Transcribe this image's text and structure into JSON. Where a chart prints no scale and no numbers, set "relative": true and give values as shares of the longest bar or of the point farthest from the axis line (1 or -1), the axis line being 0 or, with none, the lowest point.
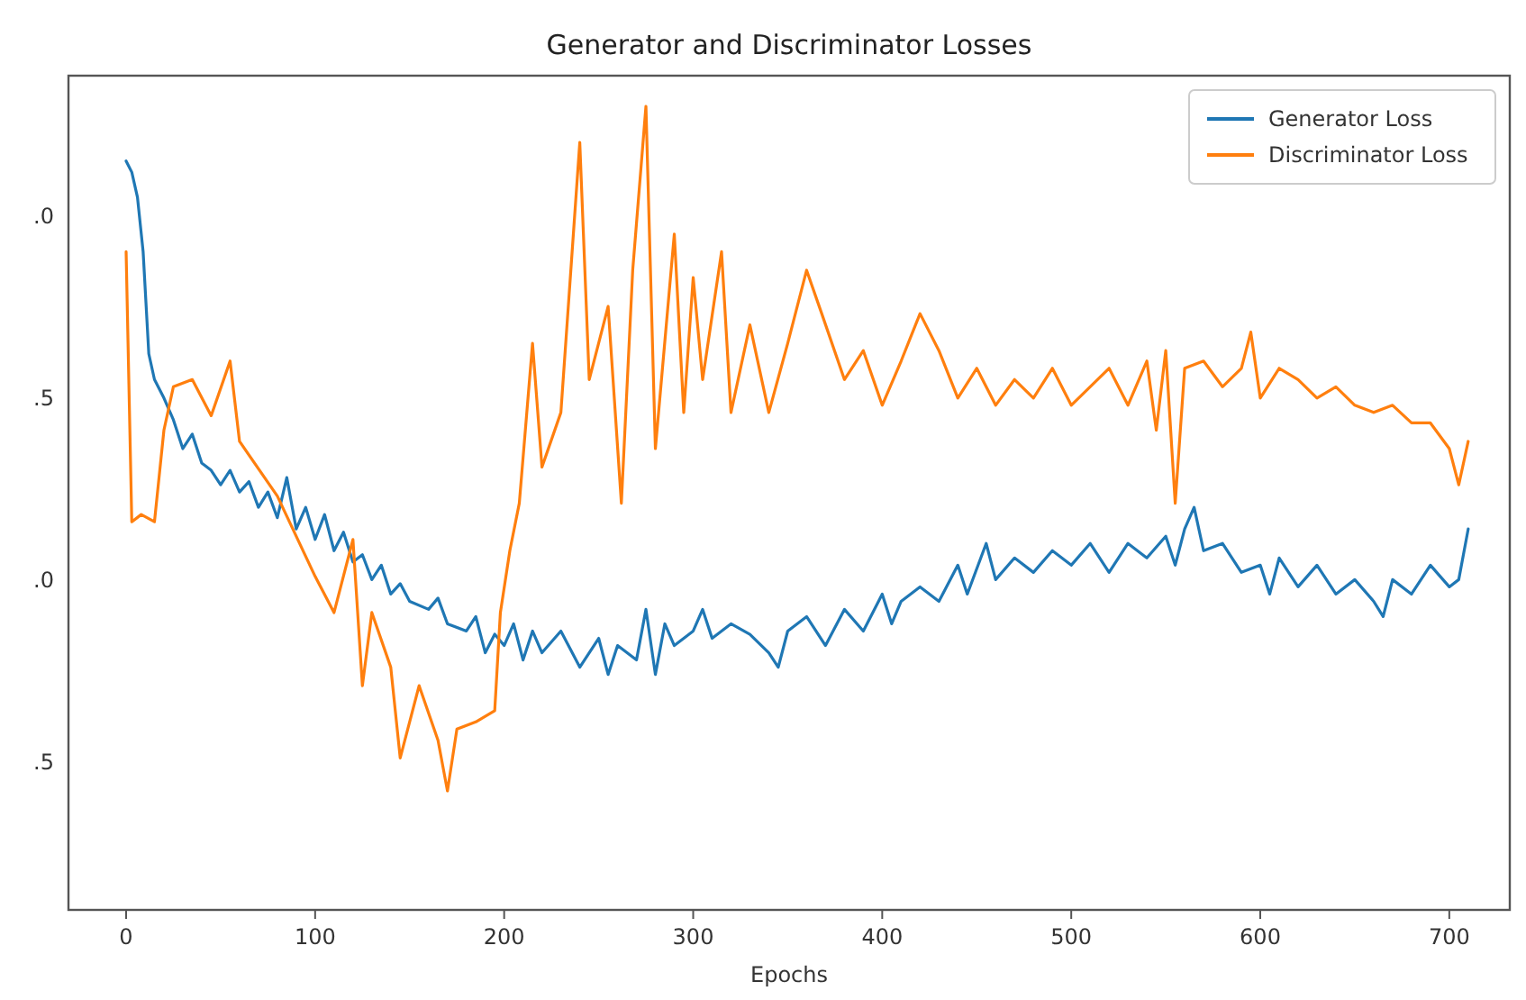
{
  "chart_data": {
    "type": "line",
    "title": "Generator and Discriminator Losses",
    "xlabel": "Epochs",
    "xlim": [
      -30.5,
      732
    ],
    "xticks": [
      0,
      100,
      200,
      300,
      400,
      500,
      600,
      700
    ],
    "relative": true,
    "annotations": [
      ".5",
      ".0",
      ".5",
      ".0"
    ],
    "grid": false,
    "legend": "top right",
    "line_style": "solid",
    "marker": "none",
    "series": [
      {
        "name": "Generator Loss",
        "color": "#1f77b4",
        "x": [
          0,
          3,
          6,
          9,
          12,
          15,
          20,
          25,
          30,
          35,
          40,
          45,
          50,
          55,
          60,
          65,
          70,
          75,
          80,
          85,
          90,
          95,
          100,
          105,
          110,
          115,
          120,
          125,
          130,
          135,
          140,
          145,
          150,
          160,
          165,
          170,
          180,
          185,
          190,
          195,
          200,
          205,
          210,
          215,
          220,
          230,
          240,
          250,
          255,
          260,
          270,
          275,
          280,
          285,
          290,
          300,
          305,
          310,
          320,
          330,
          340,
          345,
          350,
          360,
          370,
          380,
          390,
          400,
          405,
          410,
          420,
          430,
          440,
          445,
          455,
          460,
          470,
          480,
          490,
          500,
          510,
          520,
          530,
          540,
          550,
          555,
          560,
          565,
          570,
          580,
          590,
          600,
          605,
          610,
          620,
          630,
          640,
          650,
          660,
          665,
          670,
          680,
          690,
          700,
          705,
          710
        ],
        "values": [
          0.932,
          0.918,
          0.887,
          0.819,
          0.692,
          0.66,
          0.637,
          0.61,
          0.574,
          0.592,
          0.556,
          0.547,
          0.529,
          0.547,
          0.52,
          0.533,
          0.501,
          0.52,
          0.488,
          0.538,
          0.474,
          0.501,
          0.461,
          0.492,
          0.447,
          0.47,
          0.433,
          0.442,
          0.411,
          0.429,
          0.393,
          0.406,
          0.384,
          0.374,
          0.388,
          0.356,
          0.347,
          0.365,
          0.32,
          0.343,
          0.329,
          0.356,
          0.311,
          0.347,
          0.32,
          0.347,
          0.302,
          0.338,
          0.293,
          0.329,
          0.311,
          0.374,
          0.293,
          0.356,
          0.329,
          0.347,
          0.374,
          0.338,
          0.356,
          0.343,
          0.32,
          0.302,
          0.347,
          0.365,
          0.329,
          0.374,
          0.347,
          0.393,
          0.356,
          0.384,
          0.402,
          0.384,
          0.429,
          0.393,
          0.456,
          0.411,
          0.438,
          0.42,
          0.447,
          0.429,
          0.456,
          0.42,
          0.456,
          0.438,
          0.465,
          0.429,
          0.474,
          0.501,
          0.447,
          0.456,
          0.42,
          0.429,
          0.393,
          0.438,
          0.402,
          0.429,
          0.393,
          0.411,
          0.384,
          0.365,
          0.411,
          0.393,
          0.429,
          0.402,
          0.411,
          0.474
        ]
      },
      {
        "name": "Discriminator Loss",
        "color": "#ff7f0e",
        "x": [
          0,
          3,
          8,
          15,
          20,
          25,
          35,
          45,
          55,
          60,
          80,
          100,
          110,
          120,
          125,
          130,
          140,
          145,
          155,
          165,
          170,
          175,
          185,
          195,
          198,
          203,
          208,
          215,
          220,
          230,
          240,
          245,
          255,
          262,
          268,
          275,
          280,
          290,
          295,
          300,
          305,
          315,
          320,
          330,
          340,
          350,
          360,
          368,
          380,
          390,
          400,
          410,
          420,
          430,
          440,
          450,
          460,
          470,
          480,
          490,
          500,
          510,
          520,
          530,
          540,
          545,
          550,
          555,
          560,
          570,
          580,
          590,
          595,
          600,
          610,
          620,
          630,
          640,
          650,
          660,
          670,
          680,
          690,
          700,
          705,
          710
        ],
        "values": [
          0.819,
          0.483,
          0.492,
          0.483,
          0.597,
          0.651,
          0.66,
          0.615,
          0.683,
          0.583,
          0.515,
          0.415,
          0.37,
          0.461,
          0.279,
          0.37,
          0.302,
          0.189,
          0.279,
          0.211,
          0.148,
          0.225,
          0.234,
          0.248,
          0.37,
          0.447,
          0.506,
          0.705,
          0.551,
          0.619,
          0.955,
          0.66,
          0.751,
          0.506,
          0.796,
          1,
          0.574,
          0.841,
          0.619,
          0.787,
          0.66,
          0.819,
          0.619,
          0.728,
          0.619,
          0.705,
          0.796,
          0.742,
          0.66,
          0.696,
          0.628,
          0.683,
          0.742,
          0.696,
          0.637,
          0.674,
          0.628,
          0.66,
          0.637,
          0.674,
          0.628,
          0.651,
          0.674,
          0.628,
          0.683,
          0.597,
          0.696,
          0.506,
          0.674,
          0.683,
          0.651,
          0.674,
          0.719,
          0.637,
          0.674,
          0.66,
          0.637,
          0.651,
          0.628,
          0.619,
          0.628,
          0.606,
          0.606,
          0.574,
          0.529,
          0.583
        ]
      }
    ]
  }
}
